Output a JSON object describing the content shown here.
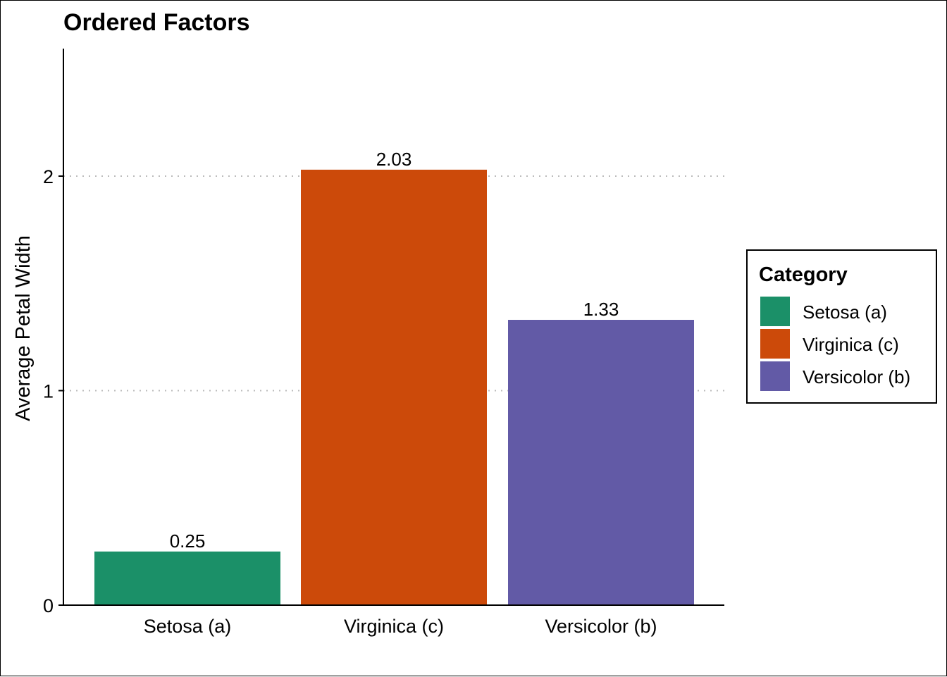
{
  "chart_data": {
    "type": "bar",
    "title": "Ordered Factors",
    "xlabel": "",
    "ylabel": "Average Petal Width",
    "categories": [
      "Setosa (a)",
      "Virginica (c)",
      "Versicolor (b)"
    ],
    "values": [
      0.25,
      2.03,
      1.33
    ],
    "data_labels": [
      "0.25",
      "2.03",
      "1.33"
    ],
    "colors": [
      "#1b9068",
      "#cc4a0a",
      "#625aa6"
    ],
    "yticks": [
      0,
      1,
      2
    ],
    "ytick_labels": [
      "0",
      "1",
      "2"
    ],
    "ylim": [
      0,
      2.6
    ],
    "grid": {
      "y_major": true,
      "style": "dotted",
      "color": "#bbbbbb"
    },
    "legend": {
      "title": "Category",
      "placement": "right",
      "entries": [
        "Setosa (a)",
        "Virginica (c)",
        "Versicolor (b)"
      ]
    }
  }
}
